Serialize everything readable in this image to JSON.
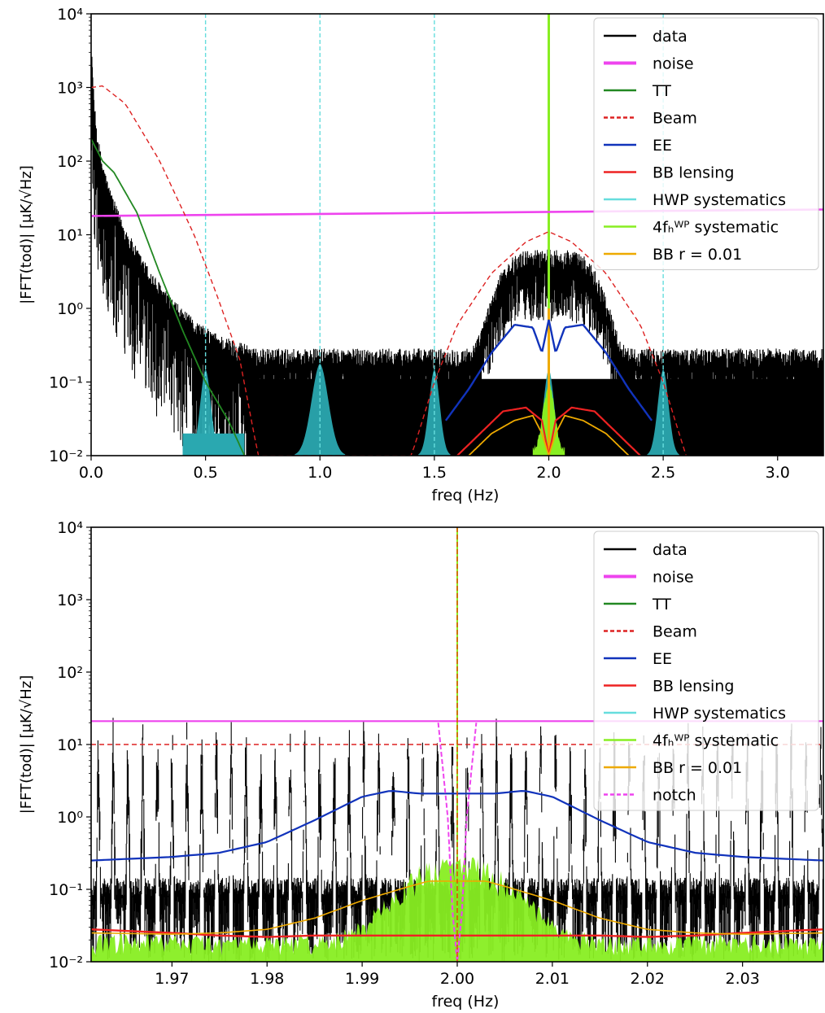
{
  "chart_data": [
    {
      "type": "line",
      "xlabel": "freq (Hz)",
      "ylabel": "|FFT(tod)| [μK/√Hz]",
      "xlim": [
        0.0,
        3.2
      ],
      "ylim": [
        0.01,
        10000
      ],
      "yscale": "log",
      "xticks": [
        0.0,
        0.5,
        1.0,
        1.5,
        2.0,
        2.5,
        3.0
      ],
      "xtick_labels": [
        "0.0",
        "0.5",
        "1.0",
        "1.5",
        "2.0",
        "2.5",
        "3.0"
      ],
      "yticks": [
        0.01,
        0.1,
        1,
        10,
        100,
        1000,
        10000
      ],
      "ytick_labels": [
        "10⁻²",
        "10⁻¹",
        "10⁰",
        "10¹",
        "10²",
        "10³",
        "10⁴"
      ],
      "legend_position": "top-right",
      "legend": [
        {
          "label": "data",
          "color": "#000000",
          "style": "solid"
        },
        {
          "label": "noise",
          "color": "#ee44ee",
          "style": "solid"
        },
        {
          "label": "TT",
          "color": "#228822",
          "style": "solid"
        },
        {
          "label": "Beam",
          "color": "#dd2222",
          "style": "dashed"
        },
        {
          "label": "EE",
          "color": "#1133bb",
          "style": "solid"
        },
        {
          "label": "BB lensing",
          "color": "#ee2222",
          "style": "solid"
        },
        {
          "label": "HWP systematics",
          "color": "#66dddd",
          "style": "solid"
        },
        {
          "label": "4fₕᵂᴾ systematic",
          "color": "#88ee22",
          "style": "solid"
        },
        {
          "label": "BB r = 0.01",
          "color": "#eeaa00",
          "style": "solid"
        }
      ],
      "series": [
        {
          "name": "noise",
          "x": [
            0.0,
            3.2
          ],
          "values": [
            18,
            22
          ]
        },
        {
          "name": "TT",
          "x": [
            0.0,
            0.05,
            0.1,
            0.2,
            0.3,
            0.4,
            0.5,
            0.6,
            0.67
          ],
          "values": [
            200,
            100,
            70,
            20,
            3,
            0.5,
            0.1,
            0.03,
            0.01
          ]
        },
        {
          "name": "Beam",
          "x": [
            0.0,
            0.05,
            0.15,
            0.3,
            0.45,
            0.55,
            0.65,
            0.73,
            1.4,
            1.5,
            1.6,
            1.75,
            1.9,
            2.0,
            2.1,
            2.25,
            2.4,
            2.5,
            2.6
          ],
          "values": [
            1000,
            1050,
            600,
            100,
            10,
            1.5,
            0.2,
            0.01,
            0.01,
            0.1,
            0.6,
            3,
            8,
            11,
            8,
            3,
            0.6,
            0.1,
            0.01
          ]
        },
        {
          "name": "EE",
          "x": [
            1.55,
            1.65,
            1.75,
            1.85,
            1.93,
            1.97,
            2.0,
            2.03,
            2.07,
            2.15,
            2.25,
            2.35,
            2.45
          ],
          "values": [
            0.03,
            0.08,
            0.25,
            0.6,
            0.55,
            0.25,
            0.7,
            0.25,
            0.55,
            0.6,
            0.25,
            0.08,
            0.03
          ]
        },
        {
          "name": "BB lensing",
          "x": [
            1.6,
            1.7,
            1.8,
            1.9,
            1.97,
            2.0,
            2.03,
            2.1,
            2.2,
            2.3,
            2.4
          ],
          "values": [
            0.01,
            0.02,
            0.04,
            0.045,
            0.03,
            0.01,
            0.03,
            0.045,
            0.04,
            0.02,
            0.01
          ]
        },
        {
          "name": "BB r = 0.01",
          "x": [
            1.65,
            1.75,
            1.85,
            1.93,
            1.97,
            2.0,
            2.03,
            2.07,
            2.15,
            2.25,
            2.35
          ],
          "values": [
            0.01,
            0.02,
            0.03,
            0.035,
            0.02,
            0.01,
            0.02,
            0.035,
            0.03,
            0.02,
            0.01
          ]
        },
        {
          "name": "HWP systematics",
          "x": [
            0.5,
            1.0,
            1.5,
            2.0,
            2.5
          ],
          "values": [
            10000,
            10000,
            10000,
            10000,
            10000
          ]
        },
        {
          "name": "4fₕᵂᴾ systematic",
          "x": [
            2.0
          ],
          "values": [
            10000
          ]
        }
      ]
    },
    {
      "type": "line",
      "xlabel": "freq (Hz)",
      "ylabel": "|FFT(tod)| [μK/√Hz]",
      "xlim": [
        1.9615,
        2.0385
      ],
      "ylim": [
        0.01,
        10000
      ],
      "yscale": "log",
      "xticks": [
        1.97,
        1.98,
        1.99,
        2.0,
        2.01,
        2.02,
        2.03
      ],
      "xtick_labels": [
        "1.97",
        "1.98",
        "1.99",
        "2.00",
        "2.01",
        "2.02",
        "2.03"
      ],
      "yticks": [
        0.01,
        0.1,
        1,
        10,
        100,
        1000,
        10000
      ],
      "ytick_labels": [
        "10⁻²",
        "10⁻¹",
        "10⁰",
        "10¹",
        "10²",
        "10³",
        "10⁴"
      ],
      "legend_position": "top-right",
      "legend": [
        {
          "label": "data",
          "color": "#000000",
          "style": "solid"
        },
        {
          "label": "noise",
          "color": "#ee44ee",
          "style": "solid"
        },
        {
          "label": "TT",
          "color": "#228822",
          "style": "solid"
        },
        {
          "label": "Beam",
          "color": "#dd2222",
          "style": "dashed"
        },
        {
          "label": "EE",
          "color": "#1133bb",
          "style": "solid"
        },
        {
          "label": "BB lensing",
          "color": "#ee2222",
          "style": "solid"
        },
        {
          "label": "HWP systematics",
          "color": "#66dddd",
          "style": "solid"
        },
        {
          "label": "4fₕᵂᴾ systematic",
          "color": "#88ee22",
          "style": "solid"
        },
        {
          "label": "BB r = 0.01",
          "color": "#eeaa00",
          "style": "solid"
        },
        {
          "label": "notch",
          "color": "#ee44ee",
          "style": "dashed"
        }
      ],
      "series": [
        {
          "name": "noise",
          "x": [
            1.9615,
            2.0385
          ],
          "values": [
            21,
            21
          ]
        },
        {
          "name": "Beam",
          "x": [
            1.9615,
            2.0385
          ],
          "values": [
            10,
            10
          ]
        },
        {
          "name": "EE",
          "x": [
            1.9615,
            1.97,
            1.975,
            1.98,
            1.985,
            1.99,
            1.993,
            1.996,
            2.004,
            2.007,
            2.01,
            2.015,
            2.02,
            2.025,
            2.03,
            2.0385
          ],
          "values": [
            0.25,
            0.28,
            0.32,
            0.45,
            0.9,
            1.9,
            2.3,
            2.1,
            2.1,
            2.3,
            1.9,
            0.9,
            0.45,
            0.32,
            0.28,
            0.25
          ]
        },
        {
          "name": "BB lensing",
          "x": [
            1.9615,
            1.97,
            1.975,
            1.98,
            1.985,
            2.015,
            2.02,
            2.025,
            2.03,
            2.0385
          ],
          "values": [
            0.028,
            0.025,
            0.023,
            0.022,
            0.023,
            0.023,
            0.022,
            0.023,
            0.025,
            0.028
          ]
        },
        {
          "name": "BB r = 0.01",
          "x": [
            1.9615,
            1.97,
            1.975,
            1.98,
            1.985,
            1.99,
            1.995,
            1.997,
            2.003,
            2.005,
            2.01,
            2.015,
            2.02,
            2.025,
            2.03,
            2.0385
          ],
          "values": [
            0.025,
            0.024,
            0.025,
            0.028,
            0.04,
            0.07,
            0.11,
            0.13,
            0.13,
            0.11,
            0.07,
            0.04,
            0.028,
            0.025,
            0.024,
            0.025
          ]
        },
        {
          "name": "notch",
          "x": [
            1.998,
            1.999,
            1.9995,
            2.0,
            2.0005,
            2.001,
            2.002
          ],
          "values": [
            20,
            1,
            0.05,
            0.01,
            0.05,
            1,
            20
          ]
        },
        {
          "name": "4fₕᵂᴾ systematic",
          "x": [
            2.0
          ],
          "values": [
            10000
          ]
        }
      ]
    }
  ]
}
